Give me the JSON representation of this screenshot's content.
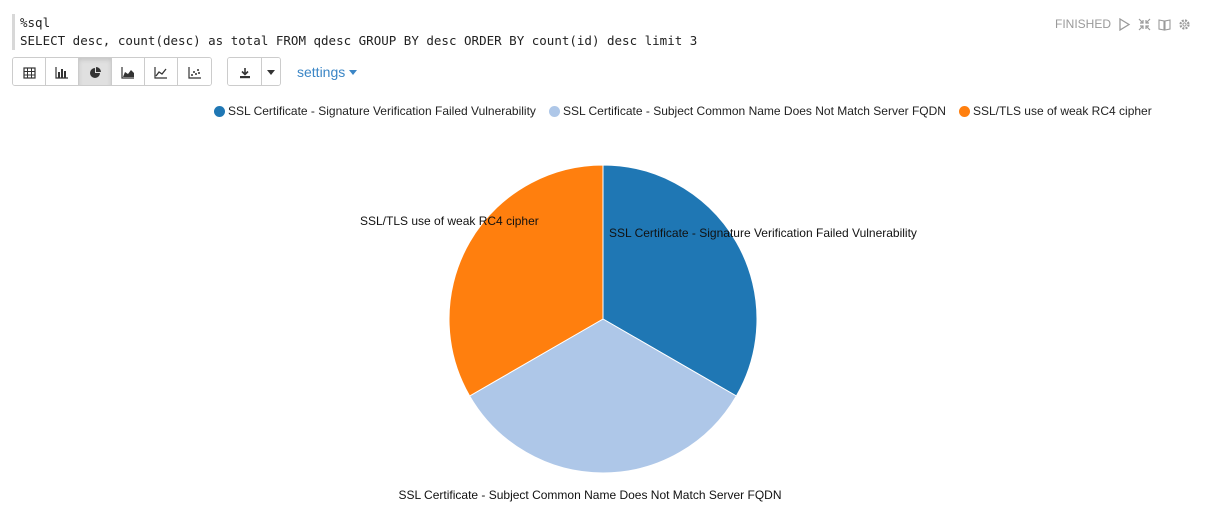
{
  "paragraph": {
    "interpreter": "%sql",
    "query": "SELECT desc, count(desc) as total FROM qdesc GROUP BY desc ORDER BY count(id) desc limit 3",
    "status": "FINISHED"
  },
  "toolbar": {
    "buttons": [
      "table-icon",
      "bar-chart-icon",
      "pie-chart-icon",
      "area-chart-icon",
      "line-chart-icon",
      "scatter-chart-icon"
    ],
    "active": "pie-chart-icon",
    "settings_label": "settings"
  },
  "chart_data": {
    "type": "pie",
    "labels": [
      "SSL Certificate - Signature Verification Failed Vulnerability",
      "SSL Certificate - Subject Common Name Does Not Match Server FQDN",
      "SSL/TLS use of weak RC4 cipher"
    ],
    "values": [
      1,
      1,
      1
    ],
    "colors": [
      "#1f77b4",
      "#aec7e8",
      "#ff7f0e"
    ],
    "legend_position": "top-right"
  }
}
